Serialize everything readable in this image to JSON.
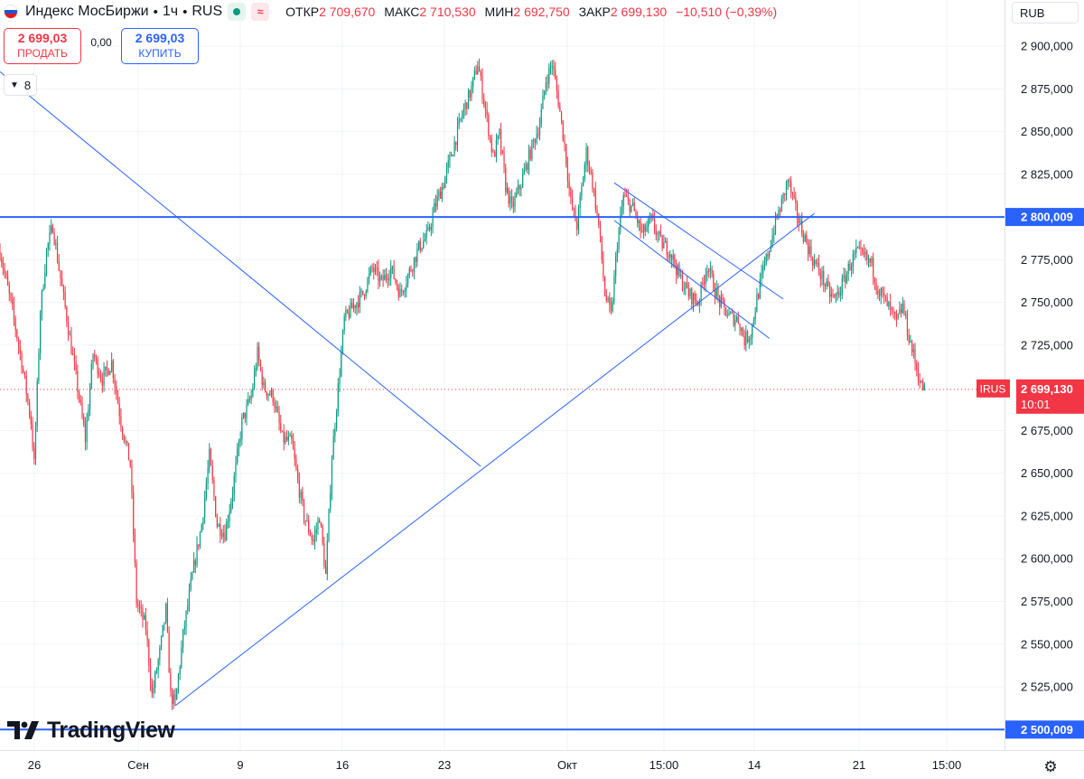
{
  "header": {
    "title": "Индекс МосБиржи",
    "sep1": "•",
    "interval": "1ч",
    "sep2": "•",
    "exchange": "RUS",
    "open_label": "ОТКР",
    "open_value": "2 709,670",
    "high_label": "МАКС",
    "high_value": "2 710,530",
    "low_label": "МИН",
    "low_value": "2 692,750",
    "close_label": "ЗАКР",
    "close_value": "2 699,130",
    "change_value": "−10,510 (−0,39%)"
  },
  "trade": {
    "sell_price": "2 699,03",
    "sell_label": "ПРОДАТЬ",
    "spread": "0,00",
    "buy_price": "2 699,03",
    "buy_label": "КУПИТЬ"
  },
  "indicators_count": "8",
  "currency": "RUB",
  "brand": "TradingView",
  "colors": {
    "up": "#089981",
    "down": "#f23645",
    "line": "#2962ff",
    "axis_text": "#131722"
  },
  "icons": {
    "settings": "gear-icon",
    "collapse": "chevron-down-icon",
    "market_status": "status-dot-icon",
    "data_delay": "wave-icon"
  },
  "chart_data": {
    "type": "candlestick",
    "symbol": "IRUS",
    "y_axis": {
      "ticks": [
        2525000,
        2550000,
        2575000,
        2600000,
        2625000,
        2650000,
        2675000,
        2725000,
        2750000,
        2775000,
        2825000,
        2850000,
        2875000,
        2900000
      ],
      "tick_labels": [
        "2 525,000",
        "2 550,000",
        "2 575,000",
        "2 600,000",
        "2 625,000",
        "2 650,000",
        "2 675,000",
        "2 725,000",
        "2 750,000",
        "2 775,000",
        "2 825,000",
        "2 850,000",
        "2 875,000",
        "2 900,000"
      ],
      "range": [
        2488000,
        2927000
      ]
    },
    "x_axis": {
      "labels": [
        "26",
        "Сен",
        "9",
        "16",
        "23",
        "Окт",
        "15:00",
        "14",
        "21",
        "15:00"
      ],
      "bars_visible": 600
    },
    "last_price": {
      "value": 2699130,
      "label": "2 699,130",
      "symbol": "IRUS",
      "countdown": "10:01"
    },
    "horizontal_levels": [
      {
        "value": 2800009,
        "label": "2 800,009"
      },
      {
        "value": 2500009,
        "label": "2 500,009"
      }
    ],
    "trend_lines": [
      {
        "from": [
          0,
          2885000
        ],
        "to": [
          310,
          2654000
        ]
      },
      {
        "from": [
          113,
          2514000
        ],
        "to": [
          525,
          2802000
        ]
      },
      {
        "from": [
          396,
          2820000
        ],
        "to": [
          505,
          2752000
        ]
      },
      {
        "from": [
          396,
          2798000
        ],
        "to": [
          496,
          2729000
        ]
      }
    ],
    "path": [
      [
        0,
        2780000
      ],
      [
        8,
        2745000
      ],
      [
        14,
        2715000
      ],
      [
        20,
        2680000
      ],
      [
        22,
        2655000
      ],
      [
        26,
        2745000
      ],
      [
        30,
        2780000
      ],
      [
        34,
        2795000
      ],
      [
        38,
        2770000
      ],
      [
        44,
        2735000
      ],
      [
        50,
        2700000
      ],
      [
        55,
        2670000
      ],
      [
        60,
        2720000
      ],
      [
        66,
        2705000
      ],
      [
        72,
        2715000
      ],
      [
        78,
        2680000
      ],
      [
        84,
        2655000
      ],
      [
        88,
        2575000
      ],
      [
        94,
        2560000
      ],
      [
        98,
        2520000
      ],
      [
        103,
        2545000
      ],
      [
        107,
        2570000
      ],
      [
        110,
        2520000
      ],
      [
        113,
        2515000
      ],
      [
        118,
        2555000
      ],
      [
        124,
        2590000
      ],
      [
        130,
        2620000
      ],
      [
        135,
        2660000
      ],
      [
        140,
        2620000
      ],
      [
        145,
        2615000
      ],
      [
        150,
        2640000
      ],
      [
        156,
        2680000
      ],
      [
        162,
        2695000
      ],
      [
        166,
        2720000
      ],
      [
        170,
        2700000
      ],
      [
        176,
        2695000
      ],
      [
        182,
        2670000
      ],
      [
        188,
        2668000
      ],
      [
        192,
        2645000
      ],
      [
        196,
        2625000
      ],
      [
        202,
        2610000
      ],
      [
        206,
        2625000
      ],
      [
        210,
        2590000
      ],
      [
        214,
        2660000
      ],
      [
        218,
        2700000
      ],
      [
        222,
        2740000
      ],
      [
        228,
        2748000
      ],
      [
        234,
        2755000
      ],
      [
        240,
        2770000
      ],
      [
        246,
        2762000
      ],
      [
        252,
        2770000
      ],
      [
        258,
        2755000
      ],
      [
        264,
        2768000
      ],
      [
        270,
        2782000
      ],
      [
        276,
        2790000
      ],
      [
        280,
        2805000
      ],
      [
        286,
        2820000
      ],
      [
        292,
        2840000
      ],
      [
        298,
        2860000
      ],
      [
        304,
        2875000
      ],
      [
        308,
        2890000
      ],
      [
        312,
        2868000
      ],
      [
        318,
        2835000
      ],
      [
        322,
        2848000
      ],
      [
        326,
        2818000
      ],
      [
        330,
        2805000
      ],
      [
        336,
        2820000
      ],
      [
        342,
        2838000
      ],
      [
        348,
        2855000
      ],
      [
        352,
        2880000
      ],
      [
        356,
        2890000
      ],
      [
        360,
        2868000
      ],
      [
        364,
        2842000
      ],
      [
        368,
        2808000
      ],
      [
        372,
        2795000
      ],
      [
        378,
        2838000
      ],
      [
        382,
        2820000
      ],
      [
        386,
        2795000
      ],
      [
        390,
        2755000
      ],
      [
        394,
        2742000
      ],
      [
        398,
        2785000
      ],
      [
        402,
        2812000
      ],
      [
        408,
        2805000
      ],
      [
        414,
        2790000
      ],
      [
        420,
        2798000
      ],
      [
        426,
        2785000
      ],
      [
        432,
        2780000
      ],
      [
        438,
        2765000
      ],
      [
        444,
        2755000
      ],
      [
        450,
        2750000
      ],
      [
        456,
        2772000
      ],
      [
        460,
        2760000
      ],
      [
        464,
        2750000
      ],
      [
        470,
        2742000
      ],
      [
        476,
        2740000
      ],
      [
        480,
        2728000
      ],
      [
        484,
        2732000
      ],
      [
        488,
        2752000
      ],
      [
        492,
        2768000
      ],
      [
        496,
        2782000
      ],
      [
        500,
        2797000
      ],
      [
        504,
        2808000
      ],
      [
        508,
        2822000
      ],
      [
        512,
        2807000
      ],
      [
        516,
        2795000
      ],
      [
        520,
        2785000
      ],
      [
        524,
        2775000
      ],
      [
        530,
        2765000
      ],
      [
        534,
        2756000
      ],
      [
        538,
        2752000
      ],
      [
        542,
        2758000
      ],
      [
        548,
        2772000
      ],
      [
        552,
        2779000
      ],
      [
        558,
        2776000
      ],
      [
        562,
        2772000
      ],
      [
        566,
        2758000
      ],
      [
        570,
        2752000
      ],
      [
        574,
        2745000
      ],
      [
        578,
        2738000
      ],
      [
        582,
        2748000
      ],
      [
        586,
        2730000
      ],
      [
        590,
        2715000
      ],
      [
        594,
        2701000
      ],
      [
        596,
        2699130
      ]
    ]
  }
}
